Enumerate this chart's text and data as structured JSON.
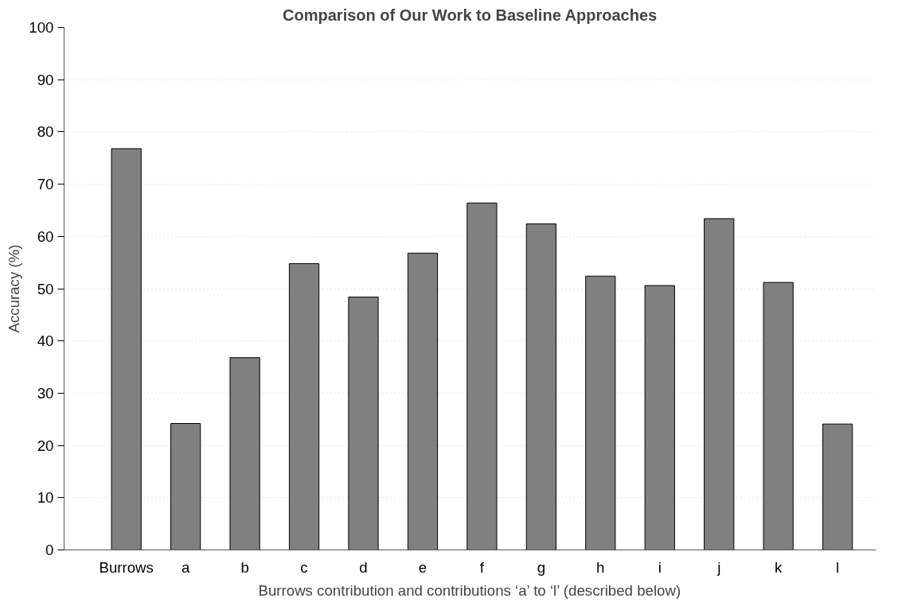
{
  "chart_data": {
    "type": "bar",
    "title": "Comparison of Our Work to Baseline Approaches",
    "xlabel": "Burrows contribution and contributions ‘a’ to ‘l’ (described below)",
    "ylabel": "Accuracy (%)",
    "categories": [
      "Burrows",
      "a",
      "b",
      "c",
      "d",
      "e",
      "f",
      "g",
      "h",
      "i",
      "j",
      "k",
      "l"
    ],
    "values": [
      76.8,
      24.2,
      36.8,
      54.8,
      48.4,
      56.8,
      66.4,
      62.4,
      52.4,
      50.6,
      63.4,
      51.2,
      24.1
    ],
    "color": "#808080",
    "ylim": [
      0,
      100
    ],
    "yticks": [
      0,
      10,
      20,
      30,
      40,
      50,
      60,
      70,
      80,
      90,
      100
    ],
    "grid": "y"
  }
}
